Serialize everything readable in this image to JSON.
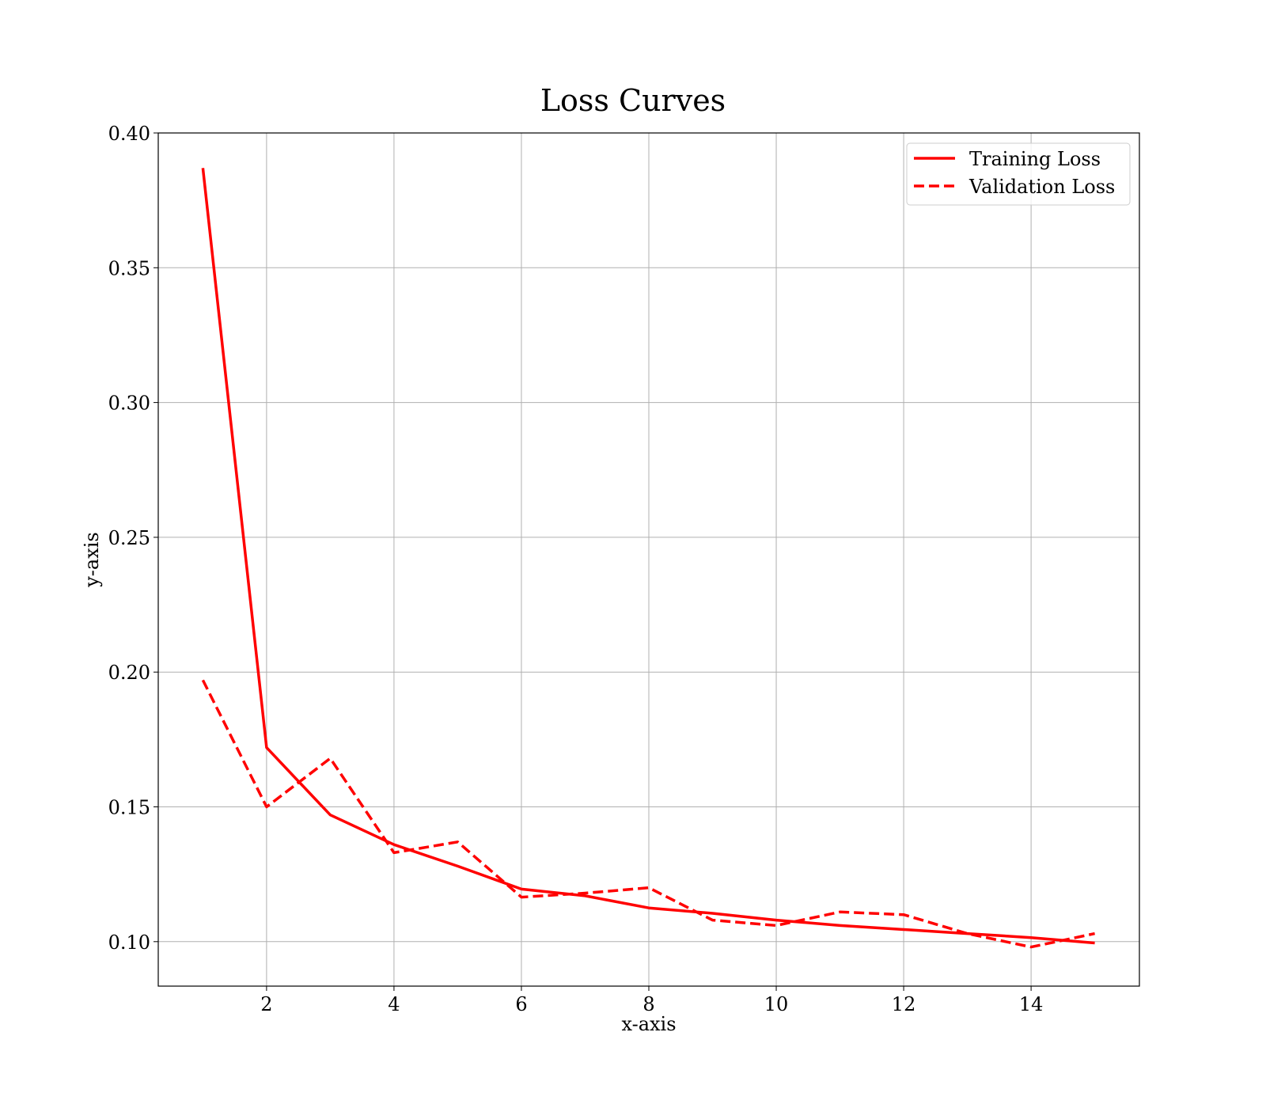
{
  "chart_data": {
    "type": "line",
    "title": "Loss Curves",
    "xlabel": "x-axis",
    "ylabel": "y-axis",
    "xlim": [
      0.3,
      15.7
    ],
    "ylim": [
      0.0835,
      0.4
    ],
    "xticks": [
      2,
      4,
      6,
      8,
      10,
      12,
      14
    ],
    "xtick_labels": [
      "2",
      "4",
      "6",
      "8",
      "10",
      "12",
      "14"
    ],
    "yticks": [
      0.1,
      0.15,
      0.2,
      0.25,
      0.3,
      0.35,
      0.4
    ],
    "ytick_labels": [
      "0.10",
      "0.15",
      "0.20",
      "0.25",
      "0.30",
      "0.35",
      "0.40"
    ],
    "grid": true,
    "legend_position": "top-right",
    "x": [
      1,
      2,
      3,
      4,
      5,
      6,
      7,
      8,
      9,
      10,
      11,
      12,
      13,
      14,
      15
    ],
    "series": [
      {
        "name": "Training Loss",
        "style": "solid",
        "color": "#ff0000",
        "values": [
          0.387,
          0.172,
          0.147,
          0.136,
          0.128,
          0.1195,
          0.117,
          0.1125,
          0.1105,
          0.108,
          0.106,
          0.1045,
          0.103,
          0.1015,
          0.0995
        ]
      },
      {
        "name": "Validation Loss",
        "style": "dashed",
        "color": "#ff0000",
        "values": [
          0.197,
          0.15,
          0.168,
          0.133,
          0.137,
          0.1165,
          0.118,
          0.12,
          0.108,
          0.106,
          0.111,
          0.11,
          0.103,
          0.098,
          0.103
        ]
      }
    ]
  }
}
